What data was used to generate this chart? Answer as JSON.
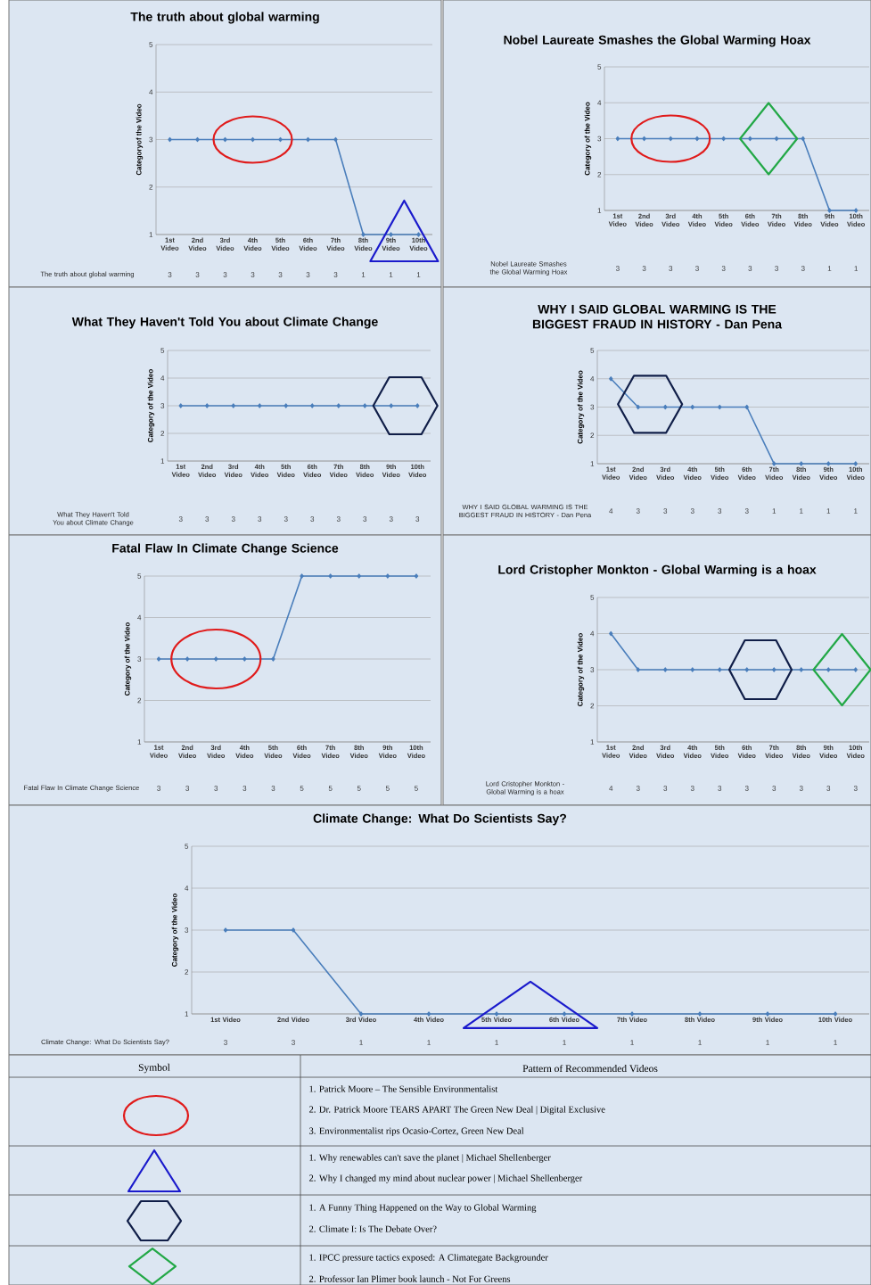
{
  "chart_data": [
    {
      "type": "line",
      "title": "The truth about global warming",
      "ylabel": "Categoryof the Video",
      "categories": [
        "1st Video",
        "2nd Video",
        "3rd Video",
        "4th Video",
        "5th Video",
        "6th Video",
        "7th Video",
        "8th Video",
        "9th Video",
        "10th Video"
      ],
      "series": [
        {
          "name": "The truth about global warming",
          "color": "#4a7ebb",
          "values": [
            3,
            3,
            3,
            3,
            3,
            3,
            3,
            1,
            1,
            1
          ]
        }
      ],
      "ylim": [
        1,
        5
      ],
      "yticks": [
        1,
        2,
        3,
        4,
        5
      ],
      "grid": "y",
      "marker": "diamond",
      "data_labels": true
    },
    {
      "type": "line",
      "title": "Nobel Laureate Smashes the Global Warming Hoax",
      "ylabel": "Category of the Video",
      "categories": [
        "1st Video",
        "2nd Video",
        "3rd Video",
        "4th Video",
        "5th Video",
        "6th Video",
        "7th Video",
        "8th Video",
        "9th Video",
        "10th Video"
      ],
      "series": [
        {
          "name": "Nobel Laureate Smashes the Global Warming Hoax",
          "color": "#4a7ebb",
          "values": [
            3,
            3,
            3,
            3,
            3,
            3,
            3,
            3,
            1,
            1
          ]
        }
      ],
      "ylim": [
        1,
        5
      ],
      "yticks": [
        1,
        2,
        3,
        4,
        5
      ],
      "grid": "y",
      "marker": "diamond",
      "data_labels": true
    },
    {
      "type": "line",
      "title": "What They Haven't Told You about Climate Change",
      "ylabel": "Category of the Video",
      "categories": [
        "1st Video",
        "2nd Video",
        "3rd Video",
        "4th Video",
        "5th Video",
        "6th Video",
        "7th Video",
        "8th Video",
        "9th Video",
        "10th Video"
      ],
      "series": [
        {
          "name": "What They Haven't Told You about Climate Change",
          "color": "#4a7ebb",
          "values": [
            3,
            3,
            3,
            3,
            3,
            3,
            3,
            3,
            3,
            3
          ]
        }
      ],
      "ylim": [
        1,
        5
      ],
      "yticks": [
        1,
        2,
        3,
        4,
        5
      ],
      "grid": "y",
      "marker": "diamond",
      "data_labels": true
    },
    {
      "type": "line",
      "title": "WHY I SAID GLOBAL WARMING IS THE BIGGEST FRAUD IN HISTORY - Dan Pena",
      "ylabel": "Category of the Video",
      "categories": [
        "1st Video",
        "2nd Video",
        "3rd Video",
        "4th Video",
        "5th Video",
        "6th Video",
        "7th Video",
        "8th Video",
        "9th Video",
        "10th Video"
      ],
      "series": [
        {
          "name": "WHY I SAID GLOBAL WARMING IS THE BIGGEST FRAUD IN HISTORY - Dan Pena",
          "color": "#4a7ebb",
          "values": [
            4,
            3,
            3,
            3,
            3,
            3,
            1,
            1,
            1,
            1
          ]
        }
      ],
      "ylim": [
        1,
        5
      ],
      "yticks": [
        1,
        2,
        3,
        4,
        5
      ],
      "grid": "y",
      "marker": "diamond",
      "data_labels": true
    },
    {
      "type": "line",
      "title": "Fatal Flaw In Climate Change Science",
      "ylabel": "Category of the Video",
      "categories": [
        "1st Video",
        "2nd Video",
        "3rd Video",
        "4th Video",
        "5th Video",
        "6th Video",
        "7th Video",
        "8th Video",
        "9th Video",
        "10th Video"
      ],
      "series": [
        {
          "name": "Fatal Flaw In Climate Change Science",
          "color": "#4a7ebb",
          "values": [
            3,
            3,
            3,
            3,
            3,
            5,
            5,
            5,
            5,
            5
          ]
        }
      ],
      "ylim": [
        1,
        5
      ],
      "yticks": [
        1,
        2,
        3,
        4,
        5
      ],
      "grid": "y",
      "marker": "diamond",
      "data_labels": true
    },
    {
      "type": "line",
      "title": "Lord Cristopher Monkton - Global Warming is a hoax",
      "ylabel": "Category of the Video",
      "categories": [
        "1st Video",
        "2nd Video",
        "3rd Video",
        "4th Video",
        "5th Video",
        "6th Video",
        "7th Video",
        "8th Video",
        "9th Video",
        "10th Video"
      ],
      "series": [
        {
          "name": "Lord Cristopher Monkton - Global Warming is a hoax",
          "color": "#4a7ebb",
          "values": [
            4,
            3,
            3,
            3,
            3,
            3,
            3,
            3,
            3,
            3
          ]
        }
      ],
      "ylim": [
        1,
        5
      ],
      "yticks": [
        1,
        2,
        3,
        4,
        5
      ],
      "grid": "y",
      "marker": "diamond",
      "data_labels": true
    },
    {
      "type": "line",
      "title": "Climate Change: What Do Scientists Say?",
      "ylabel": "Category of the Video",
      "categories": [
        "1st Video",
        "2nd Video",
        "3rd Video",
        "4th Video",
        "5th Video",
        "6th Video",
        "7th Video",
        "8th Video",
        "9th Video",
        "10th Video"
      ],
      "series": [
        {
          "name": "Climate Change: What Do Scientists Say?",
          "color": "#4a7ebb",
          "values": [
            3,
            3,
            1,
            1,
            1,
            1,
            1,
            1,
            1,
            1
          ]
        }
      ],
      "ylim": [
        1,
        5
      ],
      "yticks": [
        1,
        2,
        3,
        4,
        5
      ],
      "grid": "y",
      "marker": "diamond",
      "data_labels": true
    },
    {
      "type": "other",
      "annotations": [
        "Symbol",
        "Pattern of Recommended Videos",
        "1.  Patrick Moore – The Sensible Environmentalist",
        "2.  Dr. Patrick Moore TEARS APART The Green New Deal | Digital Exclusive",
        "3.  Environmentalist rips Ocasio-Cortez, Green New Deal",
        "1.  Why renewables can't save the planet | Michael Shellenberger",
        "2.  Why I changed my mind about nuclear power | Michael Shellenberger",
        "1.  A Funny Thing Happened on the Way to Global Warming",
        "2.  Climate I: Is The Debate Over?",
        "1.  IPCC pressure tactics exposed: A Climategate Backgrounder",
        "2.  Professor Ian Plimer book launch - Not For Greens"
      ]
    }
  ]
}
